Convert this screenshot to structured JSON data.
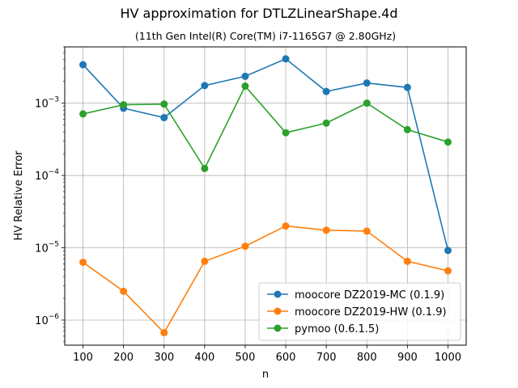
{
  "chart_data": {
    "type": "line",
    "title": "HV approximation for DTLZLinearShape.4d",
    "subtitle": "(11th Gen Intel(R) Core(TM) i7-1165G7 @ 2.80GHz)",
    "xlabel": "n",
    "ylabel": "HV Relative Error",
    "yscale": "log",
    "grid": true,
    "legend_position": "lower-right",
    "x": [
      100,
      200,
      300,
      400,
      500,
      600,
      700,
      800,
      900,
      1000
    ],
    "xlim": [
      55,
      1045
    ],
    "ylim": [
      4.5e-07,
      0.006
    ],
    "x_ticks": [
      "100",
      "200",
      "300",
      "400",
      "500",
      "600",
      "700",
      "800",
      "900",
      "1000"
    ],
    "y_ticks": [
      {
        "base": "10",
        "exp": "−6"
      },
      {
        "base": "10",
        "exp": "−5"
      },
      {
        "base": "10",
        "exp": "−4"
      },
      {
        "base": "10",
        "exp": "−3"
      }
    ],
    "series": [
      {
        "name": "moocore DZ2019-MC (0.1.9)",
        "color": "#1f77b4",
        "values": [
          0.0034,
          0.00085,
          0.00063,
          0.00175,
          0.00235,
          0.0041,
          0.00145,
          0.0019,
          0.00165,
          9.2e-06
        ]
      },
      {
        "name": "moocore DZ2019-HW (0.1.9)",
        "color": "#ff7f0e",
        "values": [
          6.3e-06,
          2.5e-06,
          6.7e-07,
          6.5e-06,
          1.05e-05,
          2e-05,
          1.75e-05,
          1.7e-05,
          6.5e-06,
          4.8e-06
        ]
      },
      {
        "name": "pymoo (0.6.1.5)",
        "color": "#2ca02c",
        "values": [
          0.00071,
          0.00095,
          0.00097,
          0.000125,
          0.00172,
          0.00039,
          0.00053,
          0.001,
          0.00043,
          0.00029
        ]
      }
    ]
  }
}
